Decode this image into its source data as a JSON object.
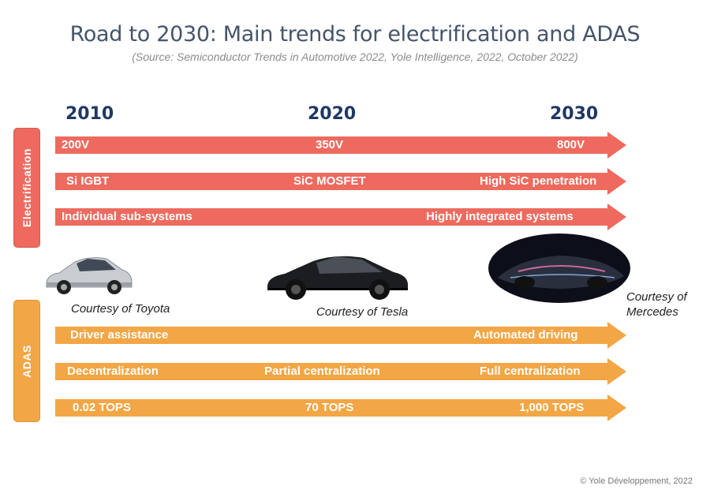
{
  "title": "Road to 2030: Main trends for electrification and ADAS",
  "subtitle": "(Source: Semiconductor Trends in Automotive 2022, Yole Intelligence, 2022, October 2022)",
  "years": [
    "2010",
    "2020",
    "2030"
  ],
  "sections": {
    "electrification": "Electrification",
    "adas": "ADAS"
  },
  "electrification_rows": [
    [
      "200V",
      "350V",
      "800V"
    ],
    [
      "Si IGBT",
      "SiC MOSFET",
      "High SiC penetration"
    ],
    [
      "Individual sub-systems",
      "",
      "Highly integrated systems"
    ]
  ],
  "adas_rows": [
    [
      "Driver assistance",
      "",
      "Automated driving"
    ],
    [
      "Decentralization",
      "Partial centralization",
      "Full centralization"
    ],
    [
      "0.02 TOPS",
      "70 TOPS",
      "1,000 TOPS"
    ]
  ],
  "captions": {
    "toyota": "Courtesy of Toyota",
    "tesla": "Courtesy of Tesla",
    "mercedes_line1": "Courtesy of",
    "mercedes_line2": "Mercedes"
  },
  "copyright": "© Yole Développement, 2022",
  "colors": {
    "electrification": "#ee6a5e",
    "adas": "#f3a645",
    "year": "#1f3864",
    "title": "#44546a"
  }
}
